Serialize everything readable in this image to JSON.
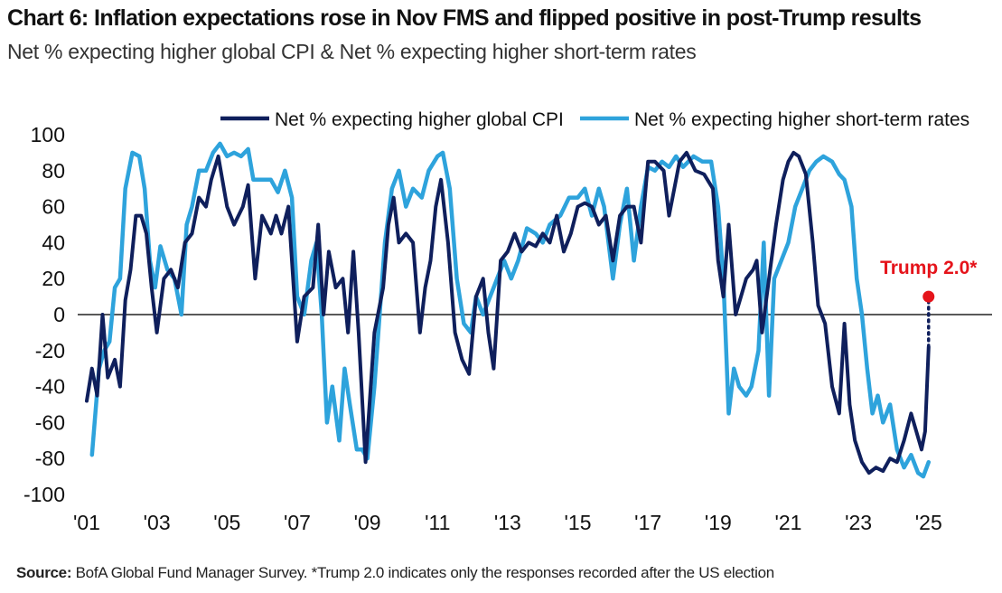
{
  "title": "Chart 6: Inflation expectations rose in Nov FMS and flipped positive in post-Trump results",
  "subtitle": "Net % expecting higher global CPI & Net % expecting higher short-term rates",
  "source_label": "Source:",
  "source_text": "BofA Global Fund Manager Survey. *Trump 2.0 indicates only the responses recorded after the US election",
  "colors": {
    "cpi": "#0f1f5c",
    "rates": "#2ea3dc",
    "annotation": "#e5141b",
    "zero_line": "#222222"
  },
  "chart_data": {
    "type": "line",
    "ylim": [
      -100,
      100
    ],
    "yticks": [
      100,
      80,
      60,
      40,
      20,
      0,
      -20,
      -40,
      -60,
      -80,
      -100
    ],
    "xlim": [
      2001.0,
      2026.5
    ],
    "xticks": [
      2001,
      2003,
      2005,
      2007,
      2009,
      2011,
      2013,
      2015,
      2017,
      2019,
      2021,
      2023,
      2025
    ],
    "xtick_labels": [
      "'01",
      "'03",
      "'05",
      "'07",
      "'09",
      "'11",
      "'13",
      "'15",
      "'17",
      "'19",
      "'21",
      "'23",
      "'25"
    ],
    "legend_position": "top",
    "grid": false,
    "series": [
      {
        "name": "Net % expecting higher global CPI",
        "key": "cpi",
        "points": [
          [
            2001.0,
            -48
          ],
          [
            2001.15,
            -30
          ],
          [
            2001.3,
            -45
          ],
          [
            2001.45,
            0
          ],
          [
            2001.6,
            -35
          ],
          [
            2001.8,
            -25
          ],
          [
            2001.95,
            -40
          ],
          [
            2002.1,
            8
          ],
          [
            2002.25,
            25
          ],
          [
            2002.4,
            55
          ],
          [
            2002.55,
            55
          ],
          [
            2002.7,
            45
          ],
          [
            2002.85,
            15
          ],
          [
            2003.0,
            -10
          ],
          [
            2003.2,
            20
          ],
          [
            2003.4,
            25
          ],
          [
            2003.6,
            15
          ],
          [
            2003.8,
            40
          ],
          [
            2004.0,
            45
          ],
          [
            2004.2,
            65
          ],
          [
            2004.4,
            60
          ],
          [
            2004.55,
            75
          ],
          [
            2004.75,
            88
          ],
          [
            2005.0,
            60
          ],
          [
            2005.2,
            50
          ],
          [
            2005.45,
            60
          ],
          [
            2005.6,
            72
          ],
          [
            2005.8,
            20
          ],
          [
            2006.0,
            55
          ],
          [
            2006.25,
            45
          ],
          [
            2006.4,
            55
          ],
          [
            2006.55,
            45
          ],
          [
            2006.75,
            60
          ],
          [
            2007.0,
            -15
          ],
          [
            2007.2,
            10
          ],
          [
            2007.45,
            15
          ],
          [
            2007.6,
            50
          ],
          [
            2007.75,
            0
          ],
          [
            2007.9,
            35
          ],
          [
            2008.1,
            15
          ],
          [
            2008.3,
            20
          ],
          [
            2008.45,
            -10
          ],
          [
            2008.6,
            35
          ],
          [
            2008.75,
            -10
          ],
          [
            2008.95,
            -82
          ],
          [
            2009.2,
            -10
          ],
          [
            2009.45,
            15
          ],
          [
            2009.6,
            50
          ],
          [
            2009.75,
            65
          ],
          [
            2009.9,
            40
          ],
          [
            2010.1,
            45
          ],
          [
            2010.3,
            40
          ],
          [
            2010.5,
            -10
          ],
          [
            2010.65,
            15
          ],
          [
            2010.8,
            30
          ],
          [
            2010.95,
            60
          ],
          [
            2011.1,
            75
          ],
          [
            2011.3,
            40
          ],
          [
            2011.5,
            -10
          ],
          [
            2011.7,
            -25
          ],
          [
            2011.9,
            -33
          ],
          [
            2012.1,
            10
          ],
          [
            2012.3,
            20
          ],
          [
            2012.45,
            -10
          ],
          [
            2012.6,
            -30
          ],
          [
            2012.8,
            30
          ],
          [
            2013.0,
            35
          ],
          [
            2013.2,
            45
          ],
          [
            2013.4,
            35
          ],
          [
            2013.6,
            40
          ],
          [
            2013.8,
            38
          ],
          [
            2014.0,
            45
          ],
          [
            2014.2,
            40
          ],
          [
            2014.4,
            55
          ],
          [
            2014.6,
            35
          ],
          [
            2014.8,
            45
          ],
          [
            2015.0,
            60
          ],
          [
            2015.2,
            62
          ],
          [
            2015.4,
            60
          ],
          [
            2015.6,
            50
          ],
          [
            2015.8,
            55
          ],
          [
            2016.0,
            30
          ],
          [
            2016.2,
            55
          ],
          [
            2016.4,
            60
          ],
          [
            2016.6,
            60
          ],
          [
            2016.8,
            40
          ],
          [
            2017.0,
            85
          ],
          [
            2017.2,
            85
          ],
          [
            2017.45,
            80
          ],
          [
            2017.6,
            55
          ],
          [
            2017.75,
            70
          ],
          [
            2017.9,
            85
          ],
          [
            2018.1,
            90
          ],
          [
            2018.35,
            80
          ],
          [
            2018.6,
            78
          ],
          [
            2018.85,
            70
          ],
          [
            2019.0,
            30
          ],
          [
            2019.15,
            10
          ],
          [
            2019.3,
            50
          ],
          [
            2019.5,
            0
          ],
          [
            2019.65,
            10
          ],
          [
            2019.8,
            20
          ],
          [
            2020.0,
            25
          ],
          [
            2020.1,
            30
          ],
          [
            2020.25,
            -10
          ],
          [
            2020.45,
            20
          ],
          [
            2020.65,
            50
          ],
          [
            2020.85,
            75
          ],
          [
            2021.0,
            85
          ],
          [
            2021.15,
            90
          ],
          [
            2021.3,
            88
          ],
          [
            2021.5,
            78
          ],
          [
            2021.7,
            40
          ],
          [
            2021.85,
            5
          ],
          [
            2022.05,
            -5
          ],
          [
            2022.25,
            -40
          ],
          [
            2022.45,
            -55
          ],
          [
            2022.6,
            -5
          ],
          [
            2022.75,
            -50
          ],
          [
            2022.9,
            -70
          ],
          [
            2023.1,
            -82
          ],
          [
            2023.3,
            -88
          ],
          [
            2023.5,
            -85
          ],
          [
            2023.7,
            -87
          ],
          [
            2023.9,
            -80
          ],
          [
            2024.1,
            -82
          ],
          [
            2024.3,
            -70
          ],
          [
            2024.5,
            -55
          ],
          [
            2024.65,
            -65
          ],
          [
            2024.8,
            -75
          ],
          [
            2024.9,
            -65
          ],
          [
            2025.0,
            -18
          ]
        ]
      },
      {
        "name": "Net % expecting higher short-term rates",
        "key": "rates",
        "points": [
          [
            2001.15,
            -78
          ],
          [
            2001.35,
            -30
          ],
          [
            2001.5,
            -20
          ],
          [
            2001.65,
            -15
          ],
          [
            2001.8,
            15
          ],
          [
            2001.95,
            20
          ],
          [
            2002.1,
            70
          ],
          [
            2002.3,
            90
          ],
          [
            2002.5,
            88
          ],
          [
            2002.65,
            70
          ],
          [
            2002.8,
            30
          ],
          [
            2002.95,
            15
          ],
          [
            2003.1,
            38
          ],
          [
            2003.3,
            25
          ],
          [
            2003.5,
            20
          ],
          [
            2003.7,
            0
          ],
          [
            2003.85,
            50
          ],
          [
            2004.0,
            60
          ],
          [
            2004.2,
            80
          ],
          [
            2004.4,
            80
          ],
          [
            2004.6,
            90
          ],
          [
            2004.8,
            95
          ],
          [
            2005.0,
            88
          ],
          [
            2005.2,
            90
          ],
          [
            2005.4,
            88
          ],
          [
            2005.6,
            92
          ],
          [
            2005.75,
            75
          ],
          [
            2006.0,
            75
          ],
          [
            2006.25,
            75
          ],
          [
            2006.45,
            68
          ],
          [
            2006.65,
            80
          ],
          [
            2006.85,
            65
          ],
          [
            2007.0,
            10
          ],
          [
            2007.2,
            0
          ],
          [
            2007.4,
            30
          ],
          [
            2007.55,
            40
          ],
          [
            2007.7,
            0
          ],
          [
            2007.85,
            -60
          ],
          [
            2008.0,
            -40
          ],
          [
            2008.2,
            -70
          ],
          [
            2008.35,
            -30
          ],
          [
            2008.5,
            -50
          ],
          [
            2008.7,
            -75
          ],
          [
            2008.85,
            -75
          ],
          [
            2009.0,
            -80
          ],
          [
            2009.2,
            -40
          ],
          [
            2009.35,
            0
          ],
          [
            2009.5,
            40
          ],
          [
            2009.7,
            70
          ],
          [
            2009.9,
            80
          ],
          [
            2010.1,
            60
          ],
          [
            2010.3,
            70
          ],
          [
            2010.55,
            65
          ],
          [
            2010.75,
            80
          ],
          [
            2011.0,
            88
          ],
          [
            2011.15,
            90
          ],
          [
            2011.35,
            70
          ],
          [
            2011.55,
            20
          ],
          [
            2011.75,
            -5
          ],
          [
            2011.95,
            -10
          ],
          [
            2012.1,
            10
          ],
          [
            2012.3,
            0
          ],
          [
            2012.5,
            10
          ],
          [
            2012.7,
            20
          ],
          [
            2012.9,
            30
          ],
          [
            2013.1,
            20
          ],
          [
            2013.3,
            30
          ],
          [
            2013.55,
            48
          ],
          [
            2013.8,
            45
          ],
          [
            2014.0,
            40
          ],
          [
            2014.2,
            50
          ],
          [
            2014.5,
            55
          ],
          [
            2014.75,
            65
          ],
          [
            2015.0,
            65
          ],
          [
            2015.2,
            70
          ],
          [
            2015.4,
            55
          ],
          [
            2015.6,
            70
          ],
          [
            2015.75,
            60
          ],
          [
            2016.0,
            20
          ],
          [
            2016.2,
            50
          ],
          [
            2016.4,
            70
          ],
          [
            2016.6,
            30
          ],
          [
            2016.8,
            60
          ],
          [
            2017.0,
            82
          ],
          [
            2017.2,
            80
          ],
          [
            2017.4,
            85
          ],
          [
            2017.6,
            82
          ],
          [
            2017.8,
            88
          ],
          [
            2018.0,
            82
          ],
          [
            2018.3,
            88
          ],
          [
            2018.55,
            85
          ],
          [
            2018.8,
            85
          ],
          [
            2019.0,
            60
          ],
          [
            2019.15,
            20
          ],
          [
            2019.3,
            -55
          ],
          [
            2019.45,
            -30
          ],
          [
            2019.6,
            -40
          ],
          [
            2019.8,
            -45
          ],
          [
            2019.95,
            -40
          ],
          [
            2020.15,
            -20
          ],
          [
            2020.3,
            40
          ],
          [
            2020.45,
            -45
          ],
          [
            2020.6,
            20
          ],
          [
            2020.8,
            30
          ],
          [
            2021.0,
            40
          ],
          [
            2021.2,
            60
          ],
          [
            2021.4,
            70
          ],
          [
            2021.6,
            80
          ],
          [
            2021.8,
            85
          ],
          [
            2022.0,
            88
          ],
          [
            2022.25,
            85
          ],
          [
            2022.45,
            78
          ],
          [
            2022.6,
            75
          ],
          [
            2022.8,
            60
          ],
          [
            2022.95,
            20
          ],
          [
            2023.1,
            0
          ],
          [
            2023.25,
            -30
          ],
          [
            2023.4,
            -55
          ],
          [
            2023.55,
            -45
          ],
          [
            2023.7,
            -60
          ],
          [
            2023.9,
            -50
          ],
          [
            2024.1,
            -75
          ],
          [
            2024.3,
            -85
          ],
          [
            2024.5,
            -78
          ],
          [
            2024.7,
            -88
          ],
          [
            2024.85,
            -90
          ],
          [
            2025.0,
            -82
          ]
        ]
      },
      {
        "name": "Trump 2.0*",
        "key": "annotation",
        "points": [
          [
            2025.0,
            10
          ]
        ]
      }
    ]
  }
}
